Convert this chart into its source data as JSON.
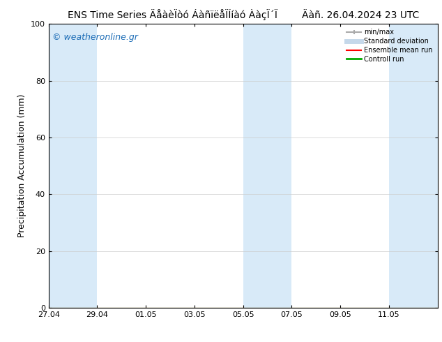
{
  "title_left": "ENS Time Series ÄåàèÏòó ÁàñïëåÏÍíàó ÀàçÏ´Ï",
  "title_right": "Äàñ. 26.04.2024 23 UTC",
  "ylabel": "Precipitation Accumulation (mm)",
  "watermark": "© weatheronline.gr",
  "ylim": [
    0,
    100
  ],
  "yticks": [
    0,
    20,
    40,
    60,
    80,
    100
  ],
  "xtick_labels": [
    "27.04",
    "29.04",
    "01.05",
    "03.05",
    "05.05",
    "07.05",
    "09.05",
    "11.05"
  ],
  "xtick_days": [
    0,
    2,
    4,
    6,
    8,
    10,
    12,
    14
  ],
  "xlim": [
    0,
    16
  ],
  "bg_color": "#ffffff",
  "shaded_color": "#d8eaf8",
  "shaded_intervals": [
    [
      0,
      2
    ],
    [
      8,
      10
    ],
    [
      14,
      16
    ]
  ],
  "legend_minmax_color": "#aaaaaa",
  "legend_std_color": "#c5d8ea",
  "legend_mean_color": "#ff0000",
  "legend_ctrl_color": "#00aa00",
  "grid_color": "#cccccc",
  "title_fontsize": 10,
  "tick_fontsize": 8,
  "ylabel_fontsize": 9,
  "watermark_color": "#1a6bb5",
  "watermark_fontsize": 9
}
